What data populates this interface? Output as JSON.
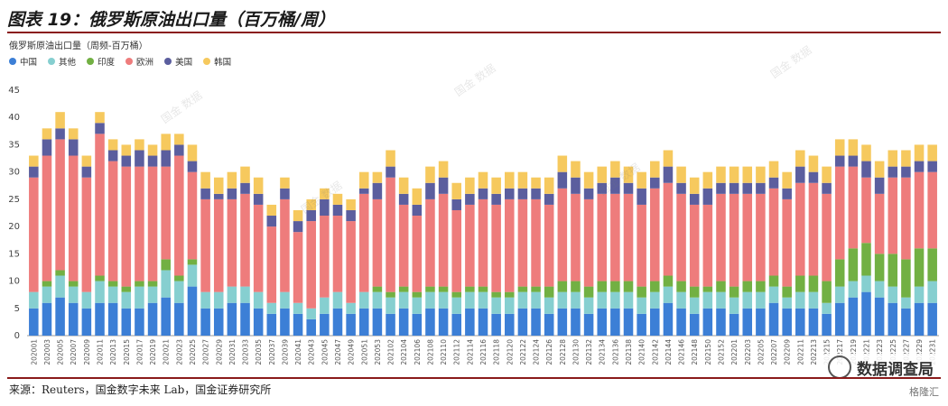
{
  "header": {
    "title": "图表 19：俄罗斯原油出口量（百万桶/周）"
  },
  "footer": {
    "source": "来源：Reuters，国金数字未来 Lab，国金证券研究所"
  },
  "branding": {
    "wechat": "数据调查局",
    "site": "格隆汇"
  },
  "watermark": "国金 数据",
  "colors": {
    "header_rule": "#8a1a1a",
    "china": "#3c7fd6",
    "other": "#86cfd0",
    "india": "#72b043",
    "europe": "#ee7c7c",
    "us": "#5b5e9e",
    "korea": "#f6c95e"
  },
  "chart_data": {
    "type": "bar",
    "stacked": true,
    "title": "俄罗斯原油出口量（周频-百万桶）",
    "xlabel": "",
    "ylabel": "",
    "ylim": [
      0,
      45
    ],
    "yticks": [
      0,
      5,
      10,
      15,
      20,
      25,
      30,
      35,
      40,
      45
    ],
    "grid": false,
    "legend_position": "top-left",
    "categories": [
      "202001",
      "202003",
      "202005",
      "202007",
      "202009",
      "202011",
      "202013",
      "202015",
      "202017",
      "202019",
      "202021",
      "202023",
      "202025",
      "202027",
      "202029",
      "202031",
      "202033",
      "202035",
      "202037",
      "202039",
      "202041",
      "202043",
      "202045",
      "202047",
      "202049",
      "202051",
      "202053",
      "202102",
      "202104",
      "202106",
      "202108",
      "202110",
      "202112",
      "202114",
      "202116",
      "202118",
      "202120",
      "202122",
      "202124",
      "202126",
      "202128",
      "202130",
      "202132",
      "202134",
      "202136",
      "202138",
      "202140",
      "202142",
      "202144",
      "202146",
      "202148",
      "202150",
      "202152",
      "202201",
      "202203",
      "202205",
      "202207",
      "202209",
      "202211",
      "202213",
      "202215",
      "202217",
      "202219",
      "202221",
      "202223",
      "202225",
      "202227",
      "202229",
      "202231"
    ],
    "series": [
      {
        "name": "中国",
        "values": [
          5,
          6,
          7,
          6,
          5,
          6,
          6,
          5,
          5,
          6,
          7,
          6,
          9,
          5,
          5,
          6,
          6,
          5,
          4,
          5,
          4,
          3,
          4,
          5,
          4,
          5,
          5,
          4,
          5,
          4,
          5,
          5,
          4,
          5,
          5,
          4,
          4,
          5,
          5,
          4,
          5,
          5,
          4,
          5,
          5,
          5,
          4,
          5,
          6,
          5,
          4,
          5,
          5,
          4,
          5,
          5,
          6,
          5,
          5,
          5,
          4,
          6,
          7,
          8,
          7,
          6,
          5,
          6,
          6
        ]
      },
      {
        "name": "其他",
        "values": [
          3,
          3,
          4,
          3,
          3,
          4,
          3,
          3,
          4,
          3,
          5,
          4,
          4,
          3,
          3,
          3,
          3,
          3,
          2,
          3,
          2,
          2,
          3,
          3,
          2,
          3,
          3,
          3,
          3,
          3,
          3,
          3,
          3,
          3,
          3,
          3,
          3,
          3,
          3,
          3,
          3,
          3,
          3,
          3,
          3,
          3,
          3,
          3,
          3,
          3,
          3,
          3,
          3,
          3,
          3,
          3,
          3,
          2,
          3,
          3,
          2,
          3,
          3,
          3,
          3,
          3,
          2,
          3,
          4
        ]
      },
      {
        "name": "印度",
        "values": [
          0,
          1,
          1,
          1,
          0,
          1,
          1,
          1,
          1,
          1,
          2,
          1,
          1,
          0,
          0,
          0,
          0,
          0,
          0,
          0,
          0,
          0,
          0,
          0,
          0,
          0,
          1,
          1,
          1,
          1,
          1,
          1,
          1,
          1,
          1,
          1,
          1,
          1,
          1,
          2,
          2,
          2,
          2,
          2,
          2,
          2,
          2,
          2,
          2,
          2,
          2,
          1,
          2,
          2,
          2,
          2,
          2,
          2,
          3,
          3,
          4,
          5,
          6,
          6,
          5,
          6,
          7,
          7,
          6
        ]
      },
      {
        "name": "欧洲",
        "values": [
          21,
          23,
          24,
          23,
          21,
          26,
          22,
          22,
          21,
          21,
          17,
          22,
          16,
          17,
          17,
          16,
          17,
          16,
          14,
          17,
          13,
          16,
          15,
          14,
          15,
          18,
          16,
          21,
          15,
          14,
          16,
          17,
          15,
          15,
          16,
          16,
          17,
          16,
          16,
          15,
          17,
          16,
          16,
          16,
          16,
          16,
          15,
          17,
          17,
          16,
          15,
          15,
          16,
          17,
          16,
          16,
          16,
          16,
          17,
          17,
          16,
          17,
          15,
          12,
          11,
          14,
          15,
          14,
          14
        ]
      },
      {
        "name": "美国",
        "values": [
          2,
          3,
          2,
          3,
          2,
          2,
          2,
          2,
          3,
          2,
          3,
          2,
          2,
          2,
          1,
          2,
          2,
          2,
          2,
          2,
          2,
          2,
          3,
          2,
          2,
          1,
          3,
          2,
          2,
          2,
          3,
          3,
          2,
          2,
          2,
          2,
          2,
          2,
          2,
          2,
          3,
          3,
          2,
          2,
          3,
          2,
          3,
          2,
          3,
          2,
          2,
          3,
          2,
          2,
          2,
          2,
          2,
          2,
          3,
          2,
          2,
          2,
          2,
          3,
          3,
          2,
          2,
          2,
          2
        ]
      },
      {
        "name": "韩国",
        "values": [
          2,
          2,
          3,
          2,
          2,
          2,
          2,
          2,
          2,
          2,
          3,
          2,
          3,
          3,
          3,
          3,
          3,
          3,
          2,
          2,
          2,
          2,
          2,
          2,
          2,
          3,
          2,
          3,
          3,
          3,
          3,
          3,
          3,
          3,
          3,
          3,
          3,
          3,
          2,
          3,
          3,
          3,
          3,
          3,
          3,
          3,
          3,
          3,
          3,
          3,
          3,
          3,
          3,
          3,
          3,
          3,
          3,
          3,
          3,
          3,
          3,
          3,
          3,
          3,
          3,
          3,
          3,
          3,
          3
        ]
      }
    ]
  }
}
